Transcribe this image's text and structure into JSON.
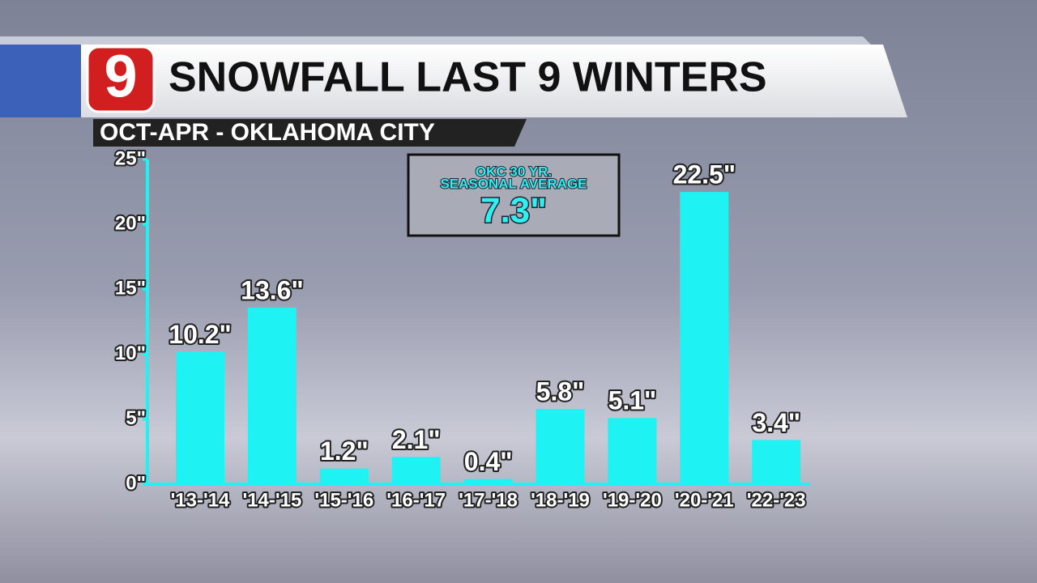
{
  "chart_data": {
    "type": "bar",
    "logo": "9",
    "title": "SNOWFALL LAST 9 WINTERS",
    "subtitle": "OCT-APR - OKLAHOMA CITY",
    "annotation_lines": [
      "OKC 30 YR.",
      "SEASONAL AVERAGE",
      "7.3\""
    ],
    "categories": [
      "'13-'14",
      "'14-'15",
      "'15-'16",
      "'16-'17",
      "'17-'18",
      "'18-'19",
      "'19-'20",
      "'20-'21",
      "'22-'23"
    ],
    "values": [
      10.2,
      13.6,
      1.2,
      2.1,
      0.4,
      5.8,
      5.1,
      22.5,
      3.4
    ],
    "value_labels": [
      "10.2\"",
      "13.6\"",
      "1.2\"",
      "2.1\"",
      "0.4\"",
      "5.8\"",
      "5.1\"",
      "22.5\"",
      "3.4\""
    ],
    "color": "#1ff2f2",
    "ylim": [
      0,
      25
    ],
    "yticks": [
      {
        "value": 0,
        "label": "0\""
      },
      {
        "value": 5,
        "label": "5\""
      },
      {
        "value": 10,
        "label": "10\""
      },
      {
        "value": 15,
        "label": "15\""
      },
      {
        "value": 20,
        "label": "20\""
      },
      {
        "value": 25,
        "label": "25\""
      }
    ]
  }
}
